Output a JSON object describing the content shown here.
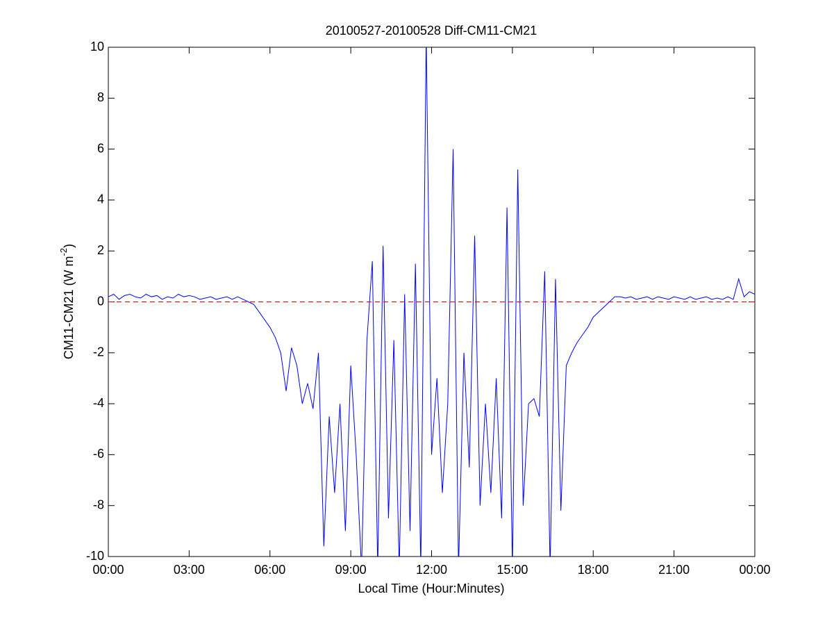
{
  "chart_data": {
    "type": "line",
    "title": "20100527-20100528 Diff-CM11-CM21",
    "xlabel": "Local Time (Hour:Minutes)",
    "ylabel": {
      "text": "CM11-CM21 (W m",
      "superscript": "-2",
      "suffix": ")"
    },
    "xlim": [
      0,
      24
    ],
    "xticks": [
      {
        "value": 0,
        "label": "00:00"
      },
      {
        "value": 3,
        "label": "03:00"
      },
      {
        "value": 6,
        "label": "06:00"
      },
      {
        "value": 9,
        "label": "09:00"
      },
      {
        "value": 12,
        "label": "12:00"
      },
      {
        "value": 15,
        "label": "15:00"
      },
      {
        "value": 18,
        "label": "18:00"
      },
      {
        "value": 21,
        "label": "21:00"
      },
      {
        "value": 24,
        "label": "00:00"
      }
    ],
    "ylim": [
      -10,
      10
    ],
    "yticks": [
      -10,
      -8,
      -6,
      -4,
      -2,
      0,
      2,
      4,
      6,
      8,
      10
    ],
    "grid": false,
    "reference_line": {
      "value": 0,
      "color": "#cc0000",
      "style": "dashed"
    },
    "x": [
      0,
      0.2,
      0.4,
      0.6,
      0.8,
      1,
      1.2,
      1.4,
      1.6,
      1.8,
      2,
      2.2,
      2.4,
      2.6,
      2.8,
      3,
      3.2,
      3.4,
      3.6,
      3.8,
      4,
      4.2,
      4.4,
      4.6,
      4.8,
      5,
      5.2,
      5.4,
      5.6,
      5.8,
      6,
      6.2,
      6.4,
      6.6,
      6.8,
      7,
      7.2,
      7.4,
      7.6,
      7.8,
      8,
      8.2,
      8.4,
      8.6,
      8.8,
      9,
      9.2,
      9.4,
      9.6,
      9.8,
      10,
      10.2,
      10.4,
      10.6,
      10.8,
      11,
      11.2,
      11.4,
      11.6,
      11.8,
      12,
      12.2,
      12.4,
      12.6,
      12.8,
      13,
      13.2,
      13.4,
      13.6,
      13.8,
      14,
      14.2,
      14.4,
      14.6,
      14.8,
      15,
      15.2,
      15.4,
      15.6,
      15.8,
      16,
      16.2,
      16.4,
      16.6,
      16.8,
      17,
      17.2,
      17.4,
      17.6,
      17.8,
      18,
      18.2,
      18.4,
      18.6,
      18.8,
      19,
      19.2,
      19.4,
      19.6,
      19.8,
      20,
      20.2,
      20.4,
      20.6,
      20.8,
      21,
      21.2,
      21.4,
      21.6,
      21.8,
      22,
      22.2,
      22.4,
      22.6,
      22.8,
      23,
      23.2,
      23.4,
      23.6,
      23.8,
      24
    ],
    "series": [
      {
        "name": "Diff-CM11-CM21",
        "color": "#0000ff",
        "values": [
          0.2,
          0.3,
          0.1,
          0.25,
          0.3,
          0.2,
          0.15,
          0.3,
          0.2,
          0.25,
          0.1,
          0.2,
          0.15,
          0.3,
          0.2,
          0.25,
          0.2,
          0.1,
          0.15,
          0.2,
          0.1,
          0.15,
          0.2,
          0.1,
          0.2,
          0.1,
          0.0,
          -0.1,
          -0.4,
          -0.7,
          -1.0,
          -1.4,
          -2.0,
          -3.5,
          -1.8,
          -2.5,
          -4.0,
          -3.2,
          -4.2,
          -2.0,
          -9.6,
          -4.5,
          -7.5,
          -4.0,
          -9.0,
          -2.5,
          -6.0,
          -10.5,
          -1.5,
          1.6,
          -10.5,
          2.2,
          -8.5,
          -1.5,
          -10.5,
          0.3,
          -9.0,
          1.5,
          -10.5,
          10.5,
          -6.0,
          -3.0,
          -7.5,
          -4.0,
          6.0,
          -10.5,
          -2.0,
          -6.5,
          2.6,
          -8.0,
          -4.0,
          -7.5,
          -3.0,
          -8.5,
          3.7,
          -10.5,
          5.2,
          -8.0,
          -4.0,
          -3.8,
          -4.5,
          1.2,
          -10.5,
          0.9,
          -8.2,
          -2.5,
          -2.0,
          -1.6,
          -1.3,
          -1.0,
          -0.6,
          -0.4,
          -0.2,
          0.0,
          0.2,
          0.2,
          0.15,
          0.2,
          0.1,
          0.15,
          0.2,
          0.1,
          0.2,
          0.15,
          0.1,
          0.2,
          0.15,
          0.1,
          0.2,
          0.1,
          0.15,
          0.2,
          0.1,
          0.15,
          0.1,
          0.2,
          0.1,
          0.9,
          0.2,
          0.4,
          0.3
        ]
      }
    ]
  }
}
